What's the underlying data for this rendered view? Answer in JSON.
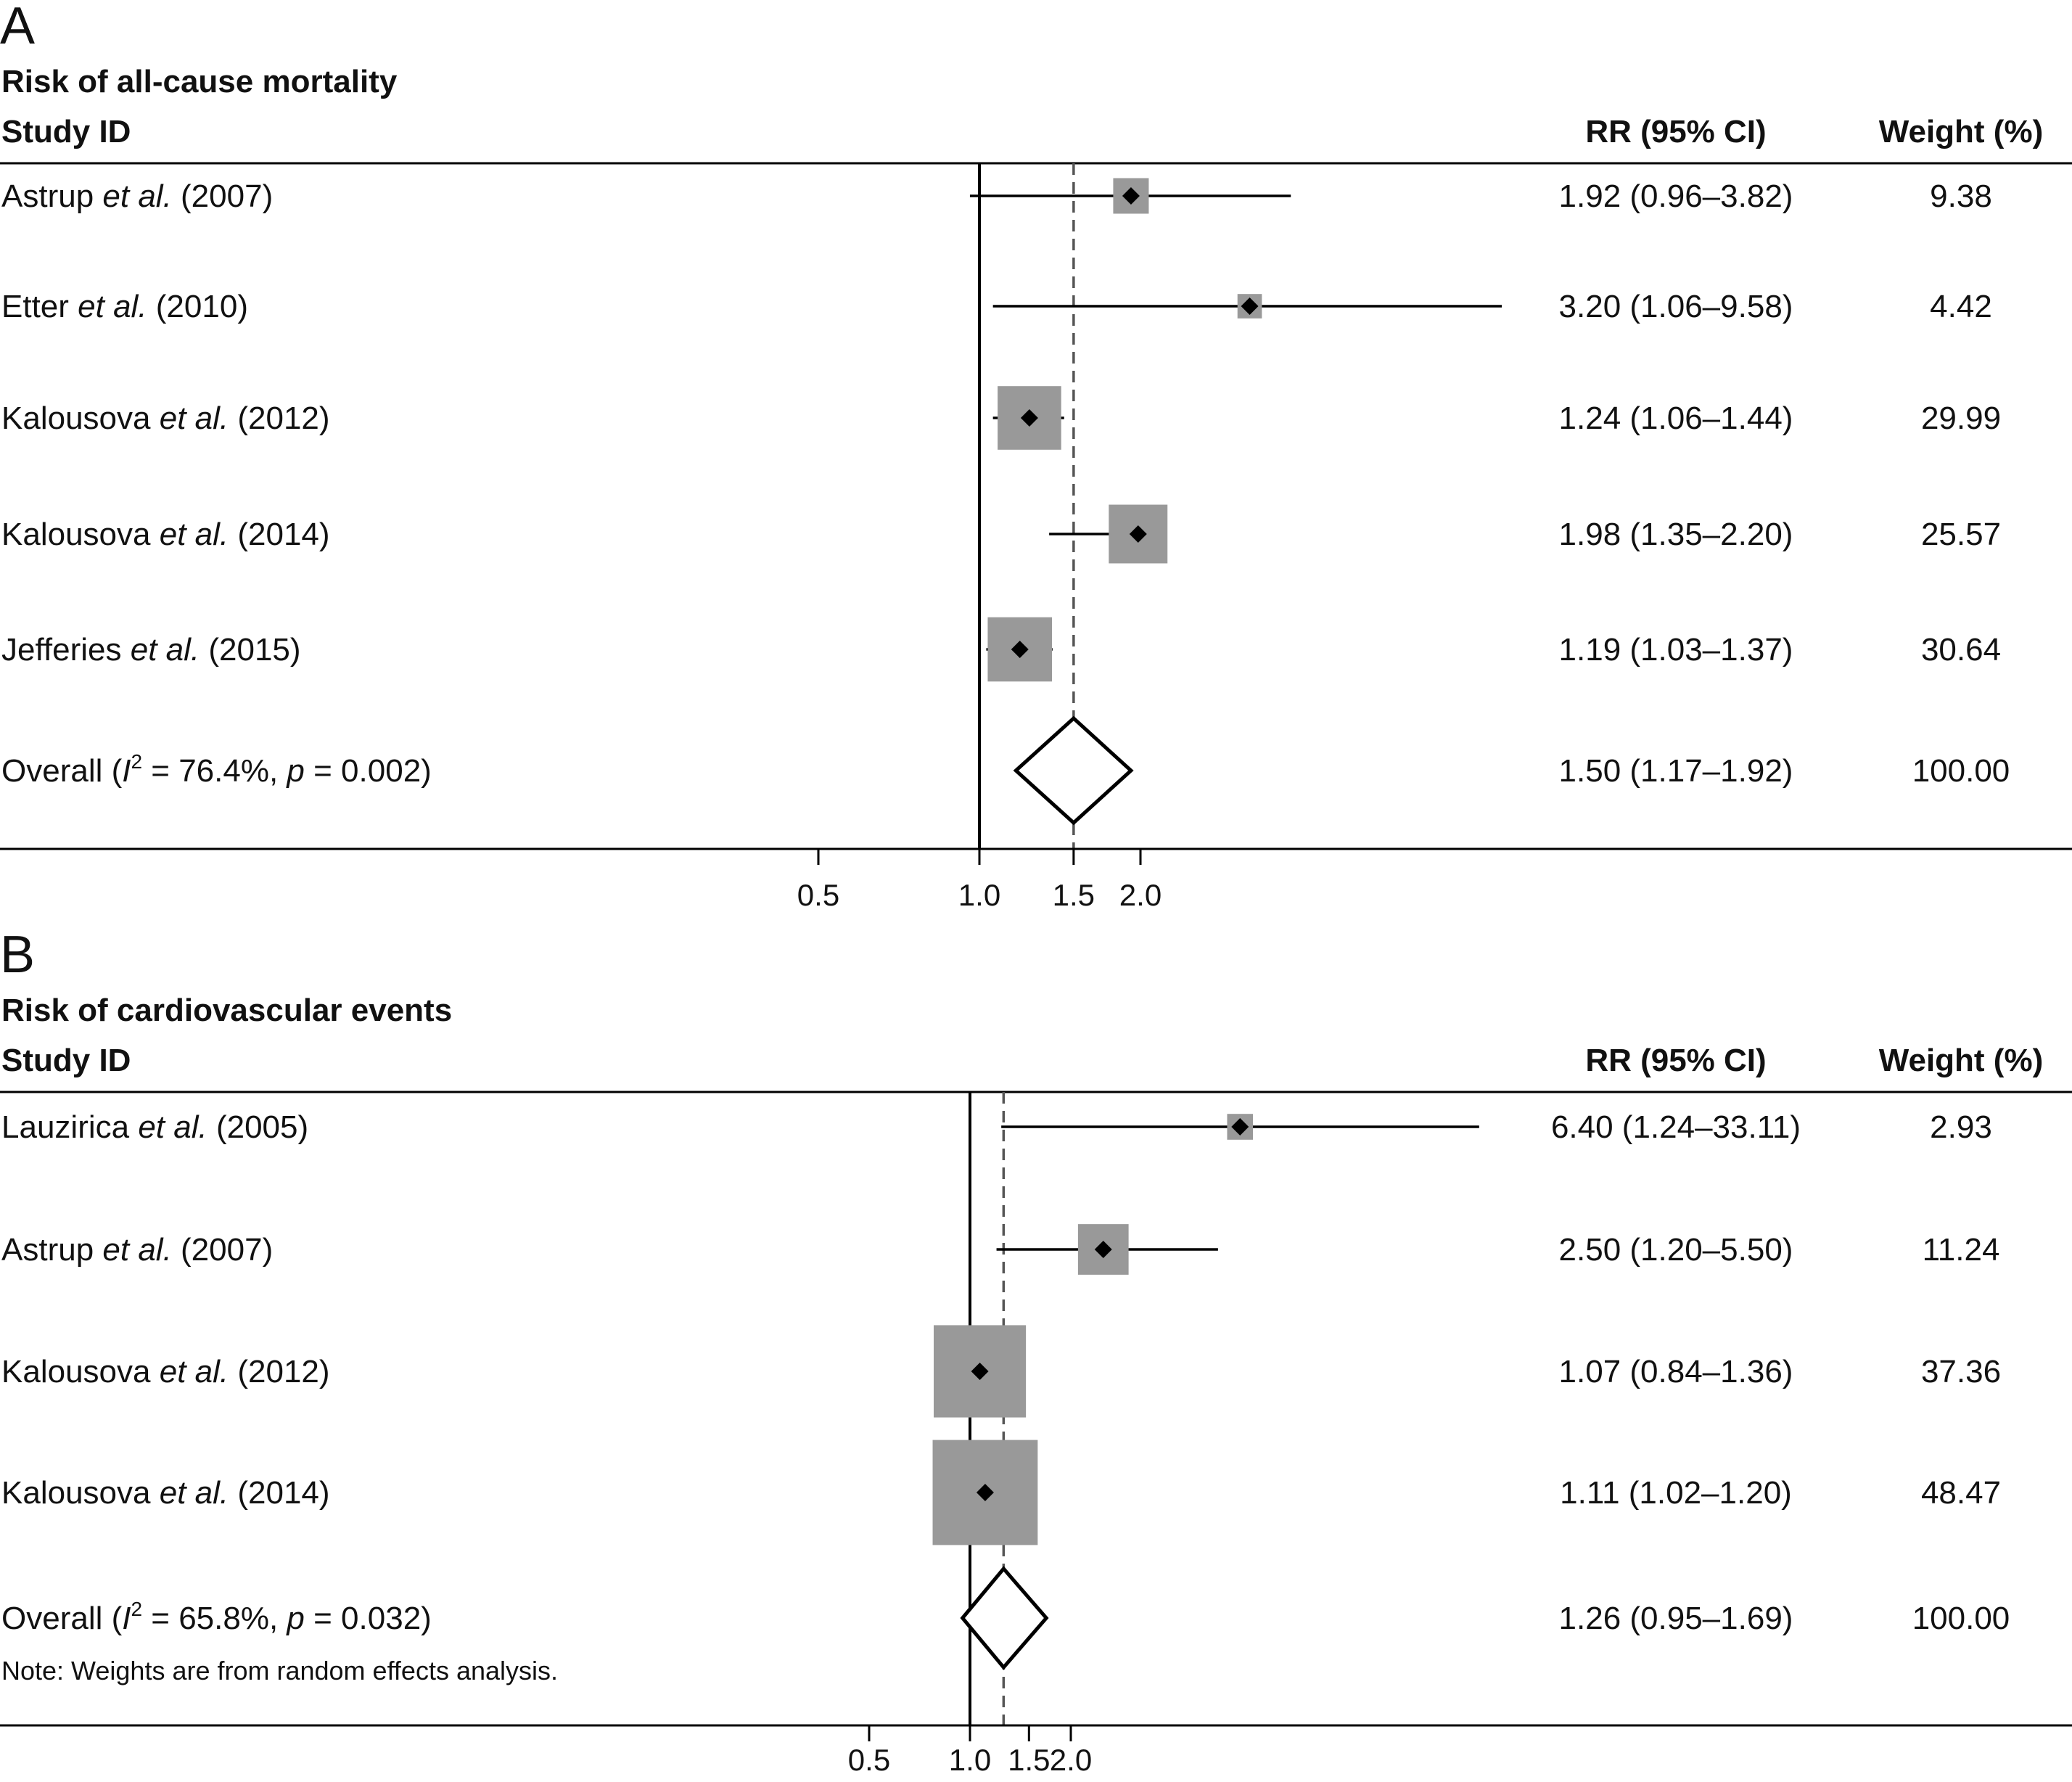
{
  "colors": {
    "box": "#999999",
    "line": "#000000",
    "ref": "#555555"
  },
  "chart_data": [
    {
      "type": "forest",
      "panel_label": "A",
      "subtitle": "Risk of all-cause mortality",
      "columns": {
        "study": "Study ID",
        "rr": "RR (95% CI)",
        "weight": "Weight (%)"
      },
      "x_ticks": [
        {
          "value": 0.5,
          "label": "0.5"
        },
        {
          "value": 1.0,
          "label": "1.0"
        },
        {
          "value": 1.5,
          "label": "1.5"
        },
        {
          "value": 2.0,
          "label": "2.0"
        }
      ],
      "null_line": 1.0,
      "studies": [
        {
          "author": "Astrup",
          "etal": "et al.",
          "year": "(2007)",
          "rr": 1.92,
          "lo": 0.96,
          "hi": 3.82,
          "rr_text": "1.92 (0.96–3.82)",
          "weight": 9.38,
          "weight_text": "9.38"
        },
        {
          "author": "Etter",
          "etal": "et al.",
          "year": "(2010)",
          "rr": 3.2,
          "lo": 1.06,
          "hi": 9.58,
          "rr_text": "3.20 (1.06–9.58)",
          "weight": 4.42,
          "weight_text": "4.42"
        },
        {
          "author": "Kalousova",
          "etal": "et al.",
          "year": "(2012)",
          "rr": 1.24,
          "lo": 1.06,
          "hi": 1.44,
          "rr_text": "1.24 (1.06–1.44)",
          "weight": 29.99,
          "weight_text": "29.99"
        },
        {
          "author": "Kalousova",
          "etal": "et al.",
          "year": "(2014)",
          "rr": 1.98,
          "lo": 1.35,
          "hi": 2.2,
          "rr_text": "1.98 (1.35–2.20)",
          "weight": 25.57,
          "weight_text": "25.57"
        },
        {
          "author": "Jefferies",
          "etal": "et al.",
          "year": "(2015)",
          "rr": 1.19,
          "lo": 1.03,
          "hi": 1.37,
          "rr_text": "1.19 (1.03–1.37)",
          "weight": 30.64,
          "weight_text": "30.64"
        }
      ],
      "overall": {
        "label_prefix": "Overall (",
        "i2_symbol": "I",
        "i2_sup": "2",
        "i2_value": " = 76.4%, ",
        "p_symbol": "p",
        "p_value": " = 0.002)",
        "rr": 1.5,
        "lo": 1.17,
        "hi": 1.92,
        "rr_text": "1.50 (1.17–1.92)",
        "weight_text": "100.00"
      },
      "note": ""
    },
    {
      "type": "forest",
      "panel_label": "B",
      "subtitle": "Risk of cardiovascular events",
      "columns": {
        "study": "Study ID",
        "rr": "RR (95% CI)",
        "weight": "Weight (%)"
      },
      "x_ticks": [
        {
          "value": 0.5,
          "label": "0.5"
        },
        {
          "value": 1.0,
          "label": "1.0"
        },
        {
          "value": 1.5,
          "label": "1.5"
        },
        {
          "value": 2.0,
          "label": "2.0"
        }
      ],
      "null_line": 1.0,
      "studies": [
        {
          "author": "Lauzirica",
          "etal": "et al.",
          "year": "(2005)",
          "rr": 6.4,
          "lo": 1.24,
          "hi": 33.11,
          "rr_text": "6.40 (1.24–33.11)",
          "weight": 2.93,
          "weight_text": "2.93"
        },
        {
          "author": "Astrup",
          "etal": "et al.",
          "year": "(2007)",
          "rr": 2.5,
          "lo": 1.2,
          "hi": 5.5,
          "rr_text": "2.50 (1.20–5.50)",
          "weight": 11.24,
          "weight_text": "11.24"
        },
        {
          "author": "Kalousova",
          "etal": "et al.",
          "year": "(2012)",
          "rr": 1.07,
          "lo": 0.84,
          "hi": 1.36,
          "rr_text": "1.07 (0.84–1.36)",
          "weight": 37.36,
          "weight_text": "37.36"
        },
        {
          "author": "Kalousova",
          "etal": "et al.",
          "year": "(2014)",
          "rr": 1.11,
          "lo": 1.02,
          "hi": 1.2,
          "rr_text": "1.11 (1.02–1.20)",
          "weight": 48.47,
          "weight_text": "48.47"
        }
      ],
      "overall": {
        "label_prefix": "Overall (",
        "i2_symbol": "I",
        "i2_sup": "2",
        "i2_value": " = 65.8%, ",
        "p_symbol": "p",
        "p_value": " = 0.032)",
        "rr": 1.26,
        "lo": 0.95,
        "hi": 1.69,
        "rr_text": "1.26 (0.95–1.69)",
        "weight_text": "100.00"
      },
      "note": "Note: Weights are from random effects analysis."
    }
  ]
}
